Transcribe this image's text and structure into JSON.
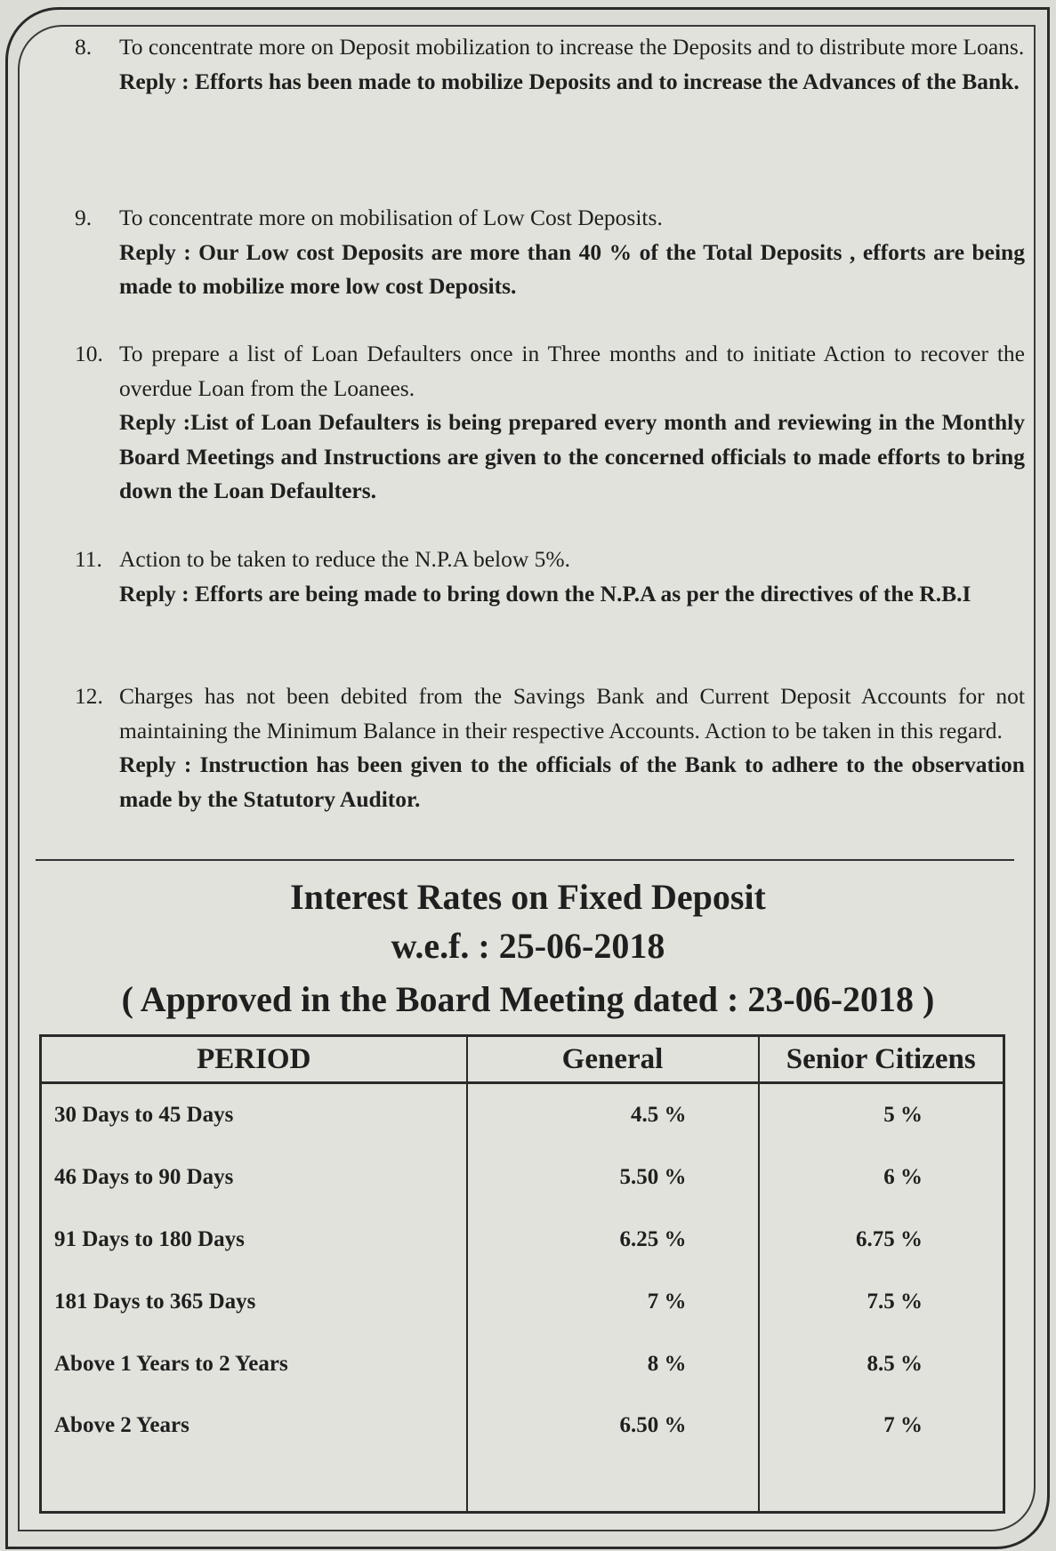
{
  "items": [
    {
      "num": "8.",
      "text": "To concentrate more on Deposit mobilization to increase the Deposits and to distribute more Loans.",
      "reply": "Reply : Efforts has been made to mobilize Deposits and to increase the Advances of the Bank."
    },
    {
      "num": "9.",
      "text": "To concentrate more on mobilisation of Low Cost Deposits.",
      "reply": "Reply : Our Low cost Deposits are more than 40 % of the Total Deposits , efforts are being made to mobilize more low cost Deposits."
    },
    {
      "num": "10.",
      "text": "To prepare a list of Loan Defaulters once in Three months and to initiate Action to recover the overdue Loan from the Loanees.",
      "reply": "Reply :List of Loan Defaulters is being prepared every month and reviewing in the Monthly Board Meetings and Instructions are given to the concerned officials to made efforts to bring down the Loan Defaulters."
    },
    {
      "num": "11.",
      "text": "Action to be taken to reduce the N.P.A below 5%.",
      "reply": "Reply : Efforts are being made to bring down the N.P.A as per the directives of the R.B.I"
    },
    {
      "num": "12.",
      "text": "Charges has not been debited from the Savings Bank and Current Deposit Accounts for not maintaining the Minimum Balance in their respective Accounts. Action to be taken in this regard.",
      "reply": "Reply : Instruction has been given to the officials of the Bank to adhere to the observation made by the Statutory Auditor."
    }
  ],
  "rates": {
    "title": "Interest Rates on Fixed Deposit",
    "wef": "w.e.f. : 25-06-2018",
    "approved": "( Approved in the Board Meeting dated : 23-06-2018 )",
    "headers": [
      "PERIOD",
      "General",
      "Senior Citizens"
    ],
    "rows": [
      [
        "30 Days to 45 Days",
        "4.5 %",
        "5 %"
      ],
      [
        "46 Days to 90 Days",
        "5.50 %",
        "6 %"
      ],
      [
        "91 Days to 180 Days",
        "6.25 %",
        "6.75 %"
      ],
      [
        "181 Days to 365 Days",
        "7 %",
        "7.5 %"
      ],
      [
        "Above 1 Years to 2 Years",
        "8 %",
        "8.5 %"
      ],
      [
        "Above 2 Years",
        "6.50 %",
        "7 %"
      ]
    ]
  }
}
